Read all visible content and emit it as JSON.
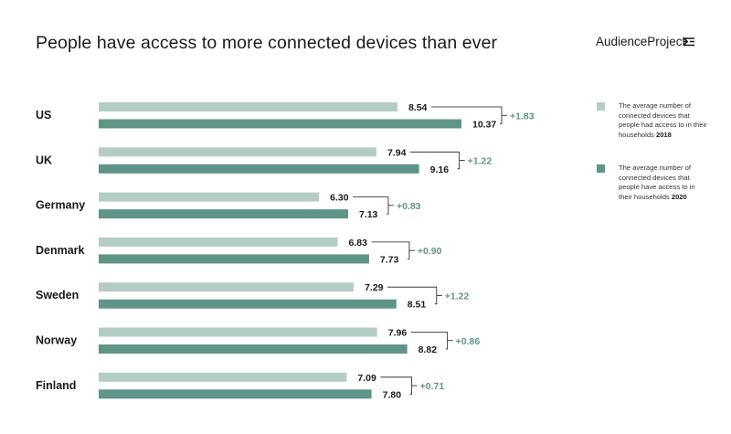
{
  "header": {
    "title": "People have access to more connected devices than ever",
    "brand": "AudienceProject"
  },
  "legend": [
    {
      "text": "The average number of connected devices that people had access to in their households",
      "year": "2018",
      "color": "#b3cdc6"
    },
    {
      "text": "The average number of connected devices that people have access to in their households",
      "year": "2020",
      "color": "#5f9488"
    }
  ],
  "chart_data": {
    "type": "bar",
    "orientation": "horizontal",
    "title": "People have access to more connected devices than ever",
    "categories": [
      "US",
      "UK",
      "Germany",
      "Denmark",
      "Sweden",
      "Norway",
      "Finland"
    ],
    "series": [
      {
        "name": "The average number of connected devices that people had access to in their households 2018",
        "color": "#b3cdc6",
        "values": [
          8.54,
          7.94,
          6.3,
          6.83,
          7.29,
          7.96,
          7.09
        ],
        "labels": [
          "8.54",
          "7.94",
          "6.30",
          "6.83",
          "7.29",
          "7.96",
          "7.09"
        ]
      },
      {
        "name": "The average number of connected devices that people have access to in their households 2020",
        "color": "#5f9488",
        "values": [
          10.37,
          9.16,
          7.13,
          7.73,
          8.51,
          8.82,
          7.8
        ],
        "labels": [
          "10.37",
          "9.16",
          "7.13",
          "7.73",
          "8.51",
          "8.82",
          "7.80"
        ]
      }
    ],
    "differences": [
      "+1.83",
      "+1.22",
      "+0.83",
      "+0.90",
      "+1.22",
      "+0.86",
      "+0.71"
    ],
    "xlim": [
      0,
      10.37
    ],
    "grid": false,
    "legend_position": "right"
  }
}
